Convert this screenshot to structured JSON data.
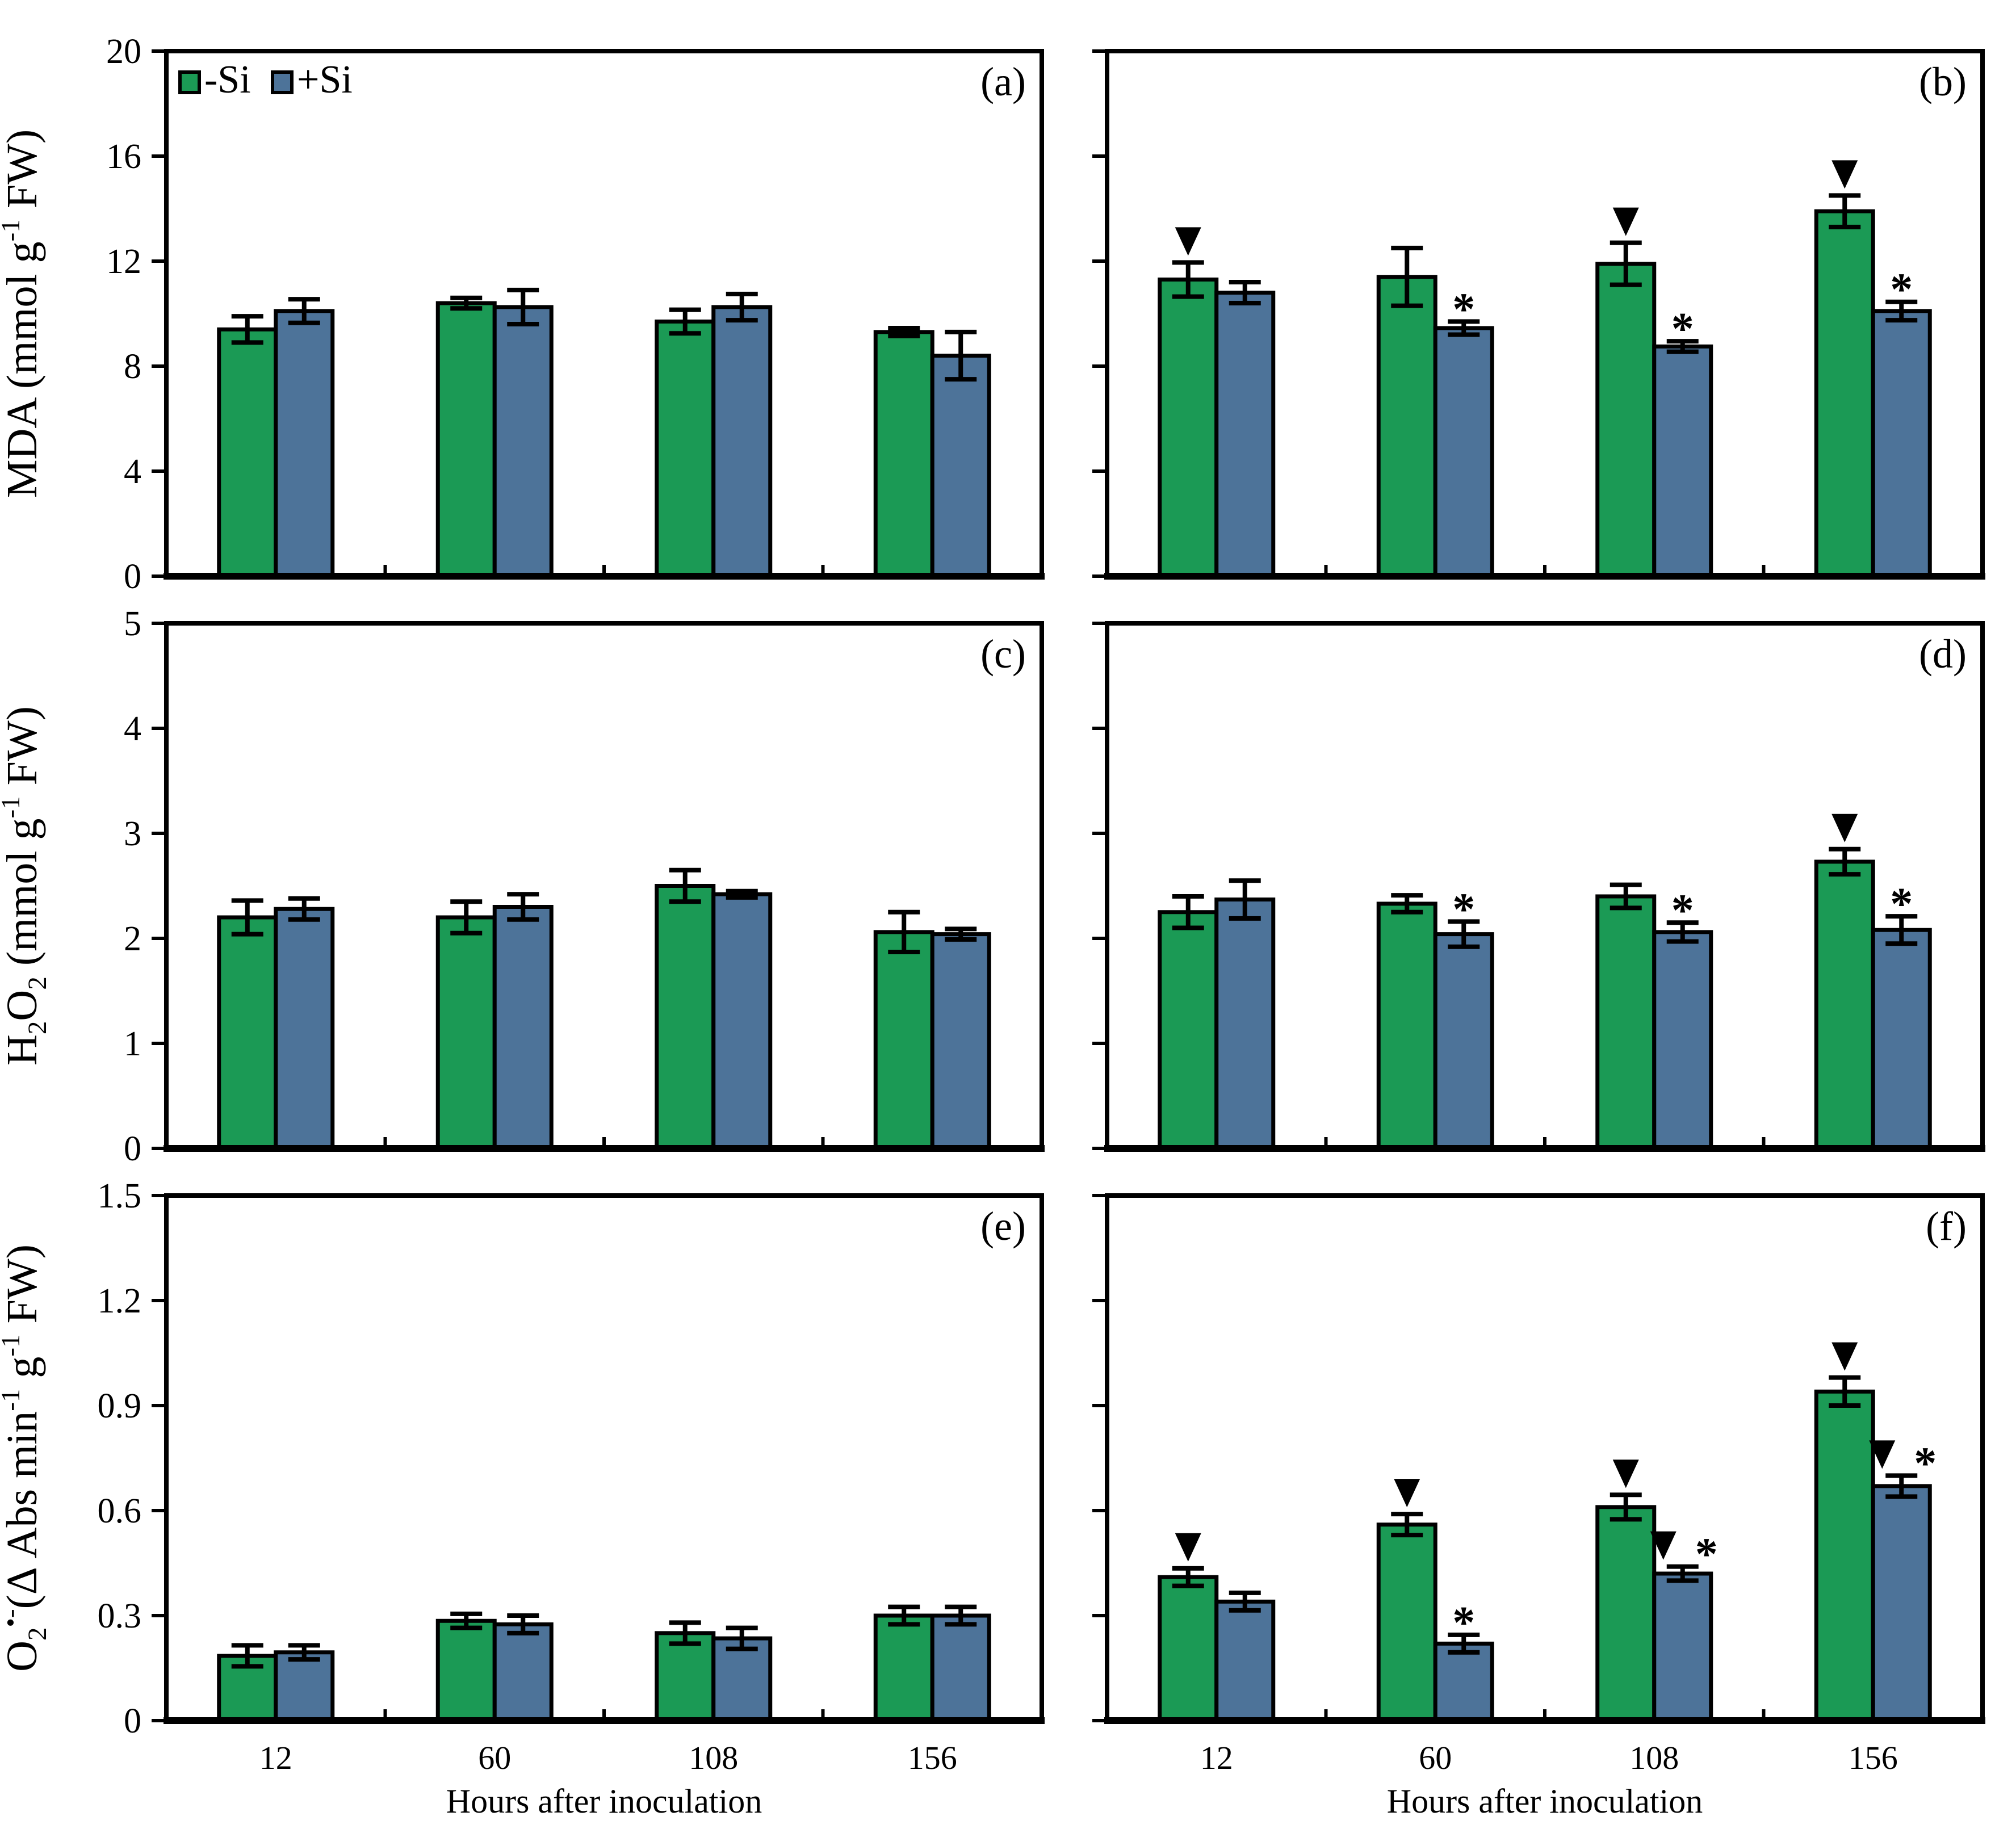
{
  "figure": {
    "x_title": "Hours after inoculation",
    "categories": [
      "12",
      "60",
      "108",
      "156"
    ],
    "legend": {
      "items": [
        {
          "label": "-Si",
          "color": "#1b9a55"
        },
        {
          "label": "+Si",
          "color": "#4d7399"
        }
      ]
    },
    "colors": {
      "minus_si": "#1b9a55",
      "plus_si": "#4d7399",
      "axis": "#000000",
      "background": "#ffffff"
    },
    "marker_legend": {
      "triangle": "▼",
      "asterisk": "*"
    }
  },
  "chart_data": [
    {
      "panel_label": "(a)",
      "type": "bar",
      "ylabel": "MDA (mmol g-1 FW)",
      "ylabel_parts": [
        [
          "n",
          "MDA (mmol g"
        ],
        [
          "sup",
          "-1"
        ],
        [
          "n",
          " FW)"
        ]
      ],
      "ylim": [
        0,
        20
      ],
      "yticks": [
        0,
        4,
        8,
        12,
        16,
        20
      ],
      "ytick_labels": [
        "0",
        "4",
        "8",
        "12",
        "16",
        "20"
      ],
      "categories": [
        "12",
        "60",
        "108",
        "156"
      ],
      "series": [
        {
          "name": "-Si",
          "color": "#1b9a55",
          "values": [
            9.4,
            10.4,
            9.7,
            9.3
          ],
          "errors": [
            0.5,
            0.2,
            0.45,
            0.15
          ],
          "markers": [
            "",
            "",
            "",
            ""
          ]
        },
        {
          "name": "+Si",
          "color": "#4d7399",
          "values": [
            10.1,
            10.25,
            10.25,
            8.4
          ],
          "errors": [
            0.45,
            0.65,
            0.5,
            0.9
          ],
          "markers": [
            "",
            "",
            "",
            ""
          ]
        }
      ],
      "show_ytick_labels": true,
      "show_xtick_labels": false,
      "show_ylabel": true,
      "show_x_title": false,
      "show_legend": true
    },
    {
      "panel_label": "(b)",
      "type": "bar",
      "ylabel": "",
      "ylabel_parts": [],
      "ylim": [
        0,
        20
      ],
      "yticks": [
        0,
        4,
        8,
        12,
        16,
        20
      ],
      "ytick_labels": [],
      "categories": [
        "12",
        "60",
        "108",
        "156"
      ],
      "series": [
        {
          "name": "-Si",
          "color": "#1b9a55",
          "values": [
            11.3,
            11.4,
            11.9,
            13.9
          ],
          "errors": [
            0.65,
            1.1,
            0.8,
            0.6
          ],
          "markers": [
            "▼",
            "",
            "▼",
            "▼"
          ]
        },
        {
          "name": "+Si",
          "color": "#4d7399",
          "values": [
            10.8,
            9.45,
            8.75,
            10.1
          ],
          "errors": [
            0.4,
            0.25,
            0.2,
            0.35
          ],
          "markers": [
            "",
            "*",
            "*",
            "*"
          ]
        }
      ],
      "show_ytick_labels": false,
      "show_xtick_labels": false,
      "show_ylabel": false,
      "show_x_title": false,
      "show_legend": false
    },
    {
      "panel_label": "(c)",
      "type": "bar",
      "ylabel": "H2O2 (mmol g-1 FW)",
      "ylabel_parts": [
        [
          "n",
          "H"
        ],
        [
          "sub",
          "2"
        ],
        [
          "n",
          "O"
        ],
        [
          "sub",
          "2"
        ],
        [
          "n",
          " (mmol g"
        ],
        [
          "sup",
          "-1"
        ],
        [
          "n",
          " FW)"
        ]
      ],
      "ylim": [
        0,
        5
      ],
      "yticks": [
        0,
        1,
        2,
        3,
        4,
        5
      ],
      "ytick_labels": [
        "0",
        "1",
        "2",
        "3",
        "4",
        "5"
      ],
      "categories": [
        "12",
        "60",
        "108",
        "156"
      ],
      "series": [
        {
          "name": "-Si",
          "color": "#1b9a55",
          "values": [
            2.2,
            2.2,
            2.5,
            2.06
          ],
          "errors": [
            0.16,
            0.15,
            0.15,
            0.19
          ],
          "markers": [
            "",
            "",
            "",
            ""
          ]
        },
        {
          "name": "+Si",
          "color": "#4d7399",
          "values": [
            2.28,
            2.3,
            2.42,
            2.04
          ],
          "errors": [
            0.1,
            0.12,
            0.03,
            0.05
          ],
          "markers": [
            "",
            "",
            "",
            ""
          ]
        }
      ],
      "show_ytick_labels": true,
      "show_xtick_labels": false,
      "show_ylabel": true,
      "show_x_title": false,
      "show_legend": false
    },
    {
      "panel_label": "(d)",
      "type": "bar",
      "ylabel": "",
      "ylabel_parts": [],
      "ylim": [
        0,
        5
      ],
      "yticks": [
        0,
        1,
        2,
        3,
        4,
        5
      ],
      "ytick_labels": [],
      "categories": [
        "12",
        "60",
        "108",
        "156"
      ],
      "series": [
        {
          "name": "-Si",
          "color": "#1b9a55",
          "values": [
            2.25,
            2.33,
            2.4,
            2.73
          ],
          "errors": [
            0.15,
            0.08,
            0.11,
            0.12
          ],
          "markers": [
            "",
            "",
            "",
            "▼"
          ]
        },
        {
          "name": "+Si",
          "color": "#4d7399",
          "values": [
            2.37,
            2.04,
            2.06,
            2.08
          ],
          "errors": [
            0.18,
            0.12,
            0.09,
            0.13
          ],
          "markers": [
            "",
            "*",
            "*",
            "*"
          ]
        }
      ],
      "show_ytick_labels": false,
      "show_xtick_labels": false,
      "show_ylabel": false,
      "show_x_title": false,
      "show_legend": false
    },
    {
      "panel_label": "(e)",
      "type": "bar",
      "ylabel": "O2•- (Δ Abs min-1 g-1 FW)",
      "ylabel_parts": [
        [
          "n",
          "O"
        ],
        [
          "sub",
          "2"
        ],
        [
          "sup",
          "•-"
        ],
        [
          "n",
          "(Δ Abs min"
        ],
        [
          "sup",
          "-1"
        ],
        [
          "n",
          " g"
        ],
        [
          "sup",
          "-1"
        ],
        [
          "n",
          " FW)"
        ]
      ],
      "ylim": [
        0,
        1.5
      ],
      "yticks": [
        0,
        0.3,
        0.6,
        0.9,
        1.2,
        1.5
      ],
      "ytick_labels": [
        "0",
        "0.3",
        "0.6",
        "0.9",
        "1.2",
        "1.5"
      ],
      "categories": [
        "12",
        "60",
        "108",
        "156"
      ],
      "series": [
        {
          "name": "-Si",
          "color": "#1b9a55",
          "values": [
            0.185,
            0.285,
            0.25,
            0.3
          ],
          "errors": [
            0.03,
            0.02,
            0.03,
            0.025
          ],
          "markers": [
            "",
            "",
            "",
            ""
          ]
        },
        {
          "name": "+Si",
          "color": "#4d7399",
          "values": [
            0.195,
            0.275,
            0.235,
            0.3
          ],
          "errors": [
            0.02,
            0.025,
            0.03,
            0.025
          ],
          "markers": [
            "",
            "",
            "",
            ""
          ]
        }
      ],
      "show_ytick_labels": true,
      "show_xtick_labels": true,
      "show_ylabel": true,
      "show_x_title": true,
      "show_legend": false
    },
    {
      "panel_label": "(f)",
      "type": "bar",
      "ylabel": "",
      "ylabel_parts": [],
      "ylim": [
        0,
        1.5
      ],
      "yticks": [
        0,
        0.3,
        0.6,
        0.9,
        1.2,
        1.5
      ],
      "ytick_labels": [],
      "categories": [
        "12",
        "60",
        "108",
        "156"
      ],
      "series": [
        {
          "name": "-Si",
          "color": "#1b9a55",
          "values": [
            0.41,
            0.56,
            0.61,
            0.94
          ],
          "errors": [
            0.025,
            0.03,
            0.035,
            0.04
          ],
          "markers": [
            "▼",
            "▼",
            "▼",
            "▼"
          ]
        },
        {
          "name": "+Si",
          "color": "#4d7399",
          "values": [
            0.34,
            0.22,
            0.42,
            0.67
          ],
          "errors": [
            0.025,
            0.025,
            0.02,
            0.03
          ],
          "markers": [
            "",
            "*",
            "▼*",
            "▼*"
          ]
        }
      ],
      "show_ytick_labels": false,
      "show_xtick_labels": true,
      "show_ylabel": false,
      "show_x_title": true,
      "show_legend": false
    }
  ]
}
